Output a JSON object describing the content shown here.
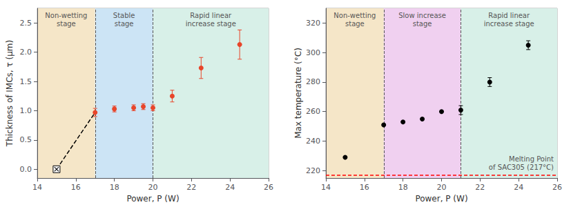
{
  "chart_data": [
    {
      "type": "scatter",
      "xlabel": "Power, P (W)",
      "ylabel": "Thickness of IMCs, τ (μm)",
      "xlim": [
        14,
        26
      ],
      "ylim": [
        -0.15,
        2.75
      ],
      "xticks": [
        14,
        16,
        18,
        20,
        22,
        24,
        26
      ],
      "yticks": [
        {
          "value": 0,
          "label": "0.0"
        },
        0.5,
        {
          "value": 1,
          "label": "1.0"
        },
        1.5,
        {
          "value": 2,
          "label": "2.0"
        },
        2.5
      ],
      "grid": false,
      "regions": [
        {
          "xmin": 14,
          "xmax": 17,
          "color": "#f5e6c8",
          "label": "Non-wetting\nstage"
        },
        {
          "xmin": 17,
          "xmax": 20,
          "color": "#cce4f5",
          "label": "Stable\nstage"
        },
        {
          "xmin": 20,
          "xmax": 26,
          "color": "#d8f0e8",
          "label": "Rapid linear\nincrease stage"
        }
      ],
      "series": [
        {
          "type": "line",
          "line_style": "dashed",
          "color": "#000000",
          "x": [
            15,
            17
          ],
          "values": [
            0.0,
            0.97
          ]
        },
        {
          "type": "scatter",
          "marker": "square_x",
          "color": "#000000",
          "x": [
            15
          ],
          "values": [
            0.0
          ]
        },
        {
          "type": "scatter",
          "marker": "circle",
          "color": "#e8452a",
          "x": [
            17,
            18,
            19,
            19.5,
            20,
            21,
            22.5,
            24.5
          ],
          "values": [
            0.97,
            1.03,
            1.05,
            1.07,
            1.05,
            1.25,
            1.73,
            2.13
          ],
          "errors": [
            0.07,
            0.05,
            0.05,
            0.05,
            0.05,
            0.1,
            0.18,
            0.25
          ]
        }
      ]
    },
    {
      "type": "scatter",
      "xlabel": "Power, P (W)",
      "ylabel": "Max temperature (°C)",
      "xlim": [
        14,
        26
      ],
      "ylim": [
        215,
        330
      ],
      "xticks": [
        14,
        16,
        18,
        20,
        22,
        24,
        26
      ],
      "yticks": [
        220,
        240,
        260,
        280,
        300,
        320
      ],
      "grid": false,
      "regions": [
        {
          "xmin": 14,
          "xmax": 17,
          "color": "#f5e6c8",
          "label": "Non-wetting\nstage"
        },
        {
          "xmin": 17,
          "xmax": 21,
          "color": "#f0d0f0",
          "label": "Slow increase\nstage"
        },
        {
          "xmin": 21,
          "xmax": 26,
          "color": "#d8f0e8",
          "label": "Rapid linear\nincrease stage"
        }
      ],
      "hline": {
        "value": 217,
        "color": "#ff0000",
        "line_style": "dashed",
        "label": "Melting Point\nof SAC305 (217°C)"
      },
      "series": [
        {
          "type": "scatter",
          "marker": "circle",
          "color": "#000000",
          "x": [
            15,
            17,
            18,
            19,
            20,
            21,
            22.5,
            24.5
          ],
          "values": [
            229,
            251,
            253,
            255,
            260,
            261,
            280,
            305
          ],
          "errors": [
            0,
            0,
            0,
            0,
            0,
            3,
            3,
            3
          ]
        }
      ]
    }
  ]
}
